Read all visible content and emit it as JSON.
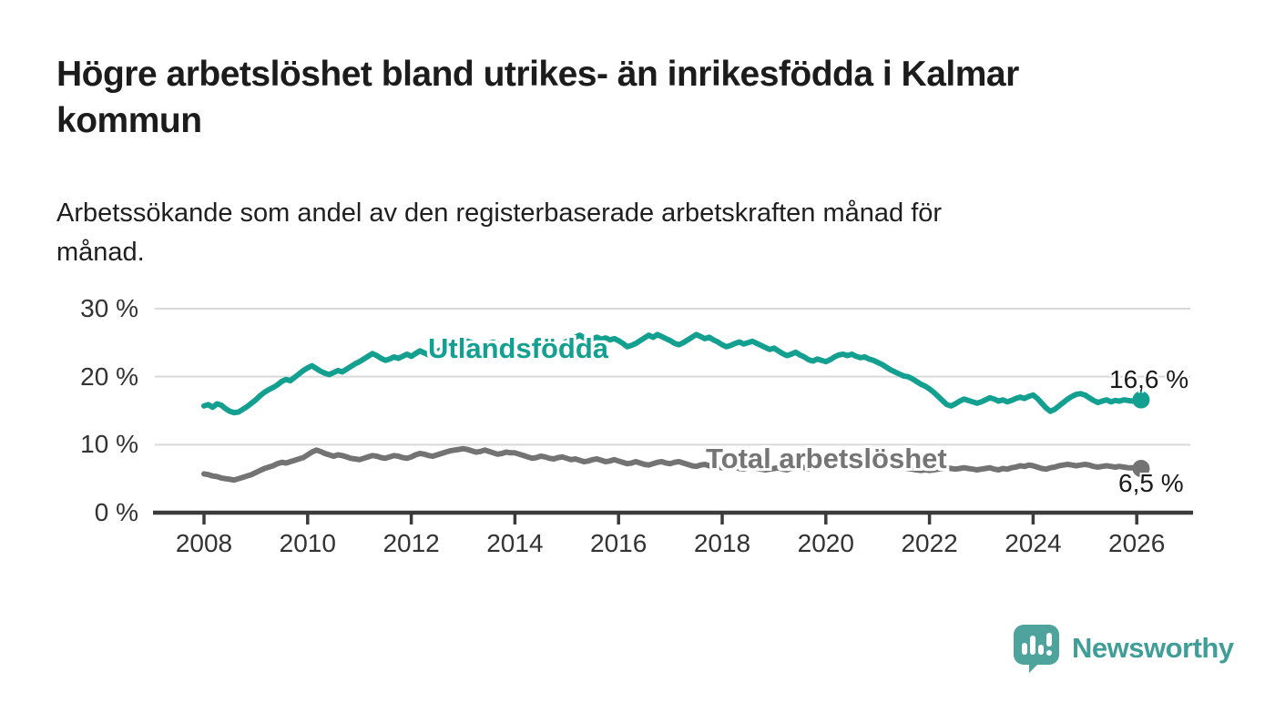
{
  "header": {
    "title_lines": [
      "Högre arbetslöshet bland utrikes- än inrikesfödda i Kalmar",
      "kommun"
    ],
    "subtitle_lines": [
      "Arbetssökande som andel av den registerbaserade arbetskraften månad för",
      "månad."
    ]
  },
  "footer": {
    "brand": "Newsworthy",
    "brand_color": "#3f9e98",
    "logo_icon": "bar-chart-speech-bubble"
  },
  "chart_data": {
    "type": "line",
    "unit": "%",
    "x_start_year": 2008,
    "x_step_months": 1,
    "x_end": "2026-02",
    "xlim": [
      2007.0,
      2027.0
    ],
    "ylim": [
      0,
      31.5
    ],
    "grid": "horizontal",
    "y_axis": {
      "ticks": [
        {
          "value": 0,
          "label": "0 %"
        },
        {
          "value": 10,
          "label": "10 %"
        },
        {
          "value": 20,
          "label": "20 %"
        },
        {
          "value": 30,
          "label": "30 %"
        }
      ]
    },
    "x_axis": {
      "ticks": [
        2008,
        2010,
        2012,
        2014,
        2016,
        2018,
        2020,
        2022,
        2024,
        2026
      ]
    },
    "colors": {
      "axis": "#3b3b3b",
      "gridline": "#d9d9d9",
      "tick_text": "#333333"
    },
    "series": [
      {
        "name": "Utlandsfödda",
        "color": "#14a091",
        "end_label": "16,6 %",
        "end_value": 16.6,
        "values": [
          15.7,
          15.9,
          15.5,
          16.0,
          15.8,
          15.3,
          14.9,
          14.7,
          14.8,
          15.2,
          15.6,
          16.1,
          16.6,
          17.2,
          17.7,
          18.1,
          18.4,
          18.8,
          19.3,
          19.6,
          19.4,
          19.9,
          20.4,
          20.9,
          21.3,
          21.6,
          21.2,
          20.8,
          20.5,
          20.3,
          20.6,
          20.9,
          20.7,
          21.1,
          21.5,
          21.9,
          22.2,
          22.6,
          23.0,
          23.4,
          23.1,
          22.7,
          22.4,
          22.6,
          22.9,
          22.7,
          23.0,
          23.3,
          23.0,
          23.4,
          23.8,
          23.5,
          23.2,
          23.4,
          23.7,
          24.0,
          23.8,
          24.1,
          24.4,
          24.7,
          24.9,
          25.2,
          25.0,
          24.7,
          24.4,
          24.6,
          24.9,
          25.1,
          24.8,
          24.5,
          24.7,
          25.0,
          25.0,
          24.7,
          24.3,
          23.9,
          23.5,
          23.2,
          23.4,
          23.7,
          24.0,
          24.3,
          24.6,
          24.9,
          25.2,
          25.5,
          25.8,
          26.1,
          25.7,
          25.4,
          25.6,
          25.8,
          25.5,
          25.7,
          25.4,
          25.6,
          25.3,
          24.9,
          24.4,
          24.6,
          24.9,
          25.3,
          25.7,
          26.1,
          25.8,
          26.2,
          25.9,
          25.6,
          25.3,
          24.9,
          24.7,
          25.0,
          25.4,
          25.8,
          26.2,
          25.9,
          25.6,
          25.8,
          25.4,
          25.1,
          24.7,
          24.4,
          24.6,
          24.9,
          25.1,
          24.8,
          25.0,
          25.2,
          24.9,
          24.6,
          24.3,
          24.0,
          24.2,
          23.8,
          23.4,
          23.1,
          23.3,
          23.6,
          23.2,
          22.9,
          22.5,
          22.3,
          22.6,
          22.4,
          22.2,
          22.5,
          22.9,
          23.2,
          23.3,
          23.1,
          23.3,
          23.0,
          22.8,
          22.9,
          22.6,
          22.4,
          22.1,
          21.8,
          21.4,
          21.0,
          20.7,
          20.4,
          20.1,
          20.0,
          19.7,
          19.3,
          18.9,
          18.6,
          18.2,
          17.7,
          17.1,
          16.5,
          15.9,
          15.7,
          16.0,
          16.4,
          16.7,
          16.5,
          16.3,
          16.1,
          16.3,
          16.6,
          16.9,
          16.7,
          16.4,
          16.6,
          16.3,
          16.5,
          16.8,
          17.0,
          16.8,
          17.1,
          17.3,
          16.8,
          16.1,
          15.4,
          14.9,
          15.2,
          15.7,
          16.2,
          16.7,
          17.1,
          17.4,
          17.5,
          17.3,
          16.9,
          16.5,
          16.2,
          16.4,
          16.6,
          16.3,
          16.5,
          16.4,
          16.6,
          16.5,
          16.4,
          16.5,
          16.6
        ]
      },
      {
        "name": "Total arbetslöshet",
        "color": "#737373",
        "end_label": "6,5 %",
        "end_value": 6.5,
        "values": [
          5.7,
          5.6,
          5.4,
          5.3,
          5.1,
          5.0,
          4.9,
          4.8,
          5.0,
          5.2,
          5.4,
          5.6,
          5.9,
          6.2,
          6.5,
          6.7,
          6.9,
          7.2,
          7.4,
          7.3,
          7.5,
          7.7,
          7.9,
          8.1,
          8.5,
          8.9,
          9.2,
          9.0,
          8.7,
          8.5,
          8.3,
          8.5,
          8.4,
          8.2,
          8.0,
          7.9,
          7.8,
          8.0,
          8.2,
          8.4,
          8.3,
          8.1,
          8.0,
          8.2,
          8.4,
          8.3,
          8.1,
          8.0,
          8.2,
          8.5,
          8.7,
          8.6,
          8.4,
          8.3,
          8.5,
          8.7,
          8.9,
          9.1,
          9.2,
          9.3,
          9.4,
          9.3,
          9.1,
          8.9,
          9.0,
          9.2,
          9.0,
          8.8,
          8.6,
          8.7,
          8.9,
          8.8,
          8.8,
          8.6,
          8.4,
          8.2,
          8.0,
          8.1,
          8.3,
          8.2,
          8.0,
          7.9,
          8.1,
          8.2,
          8.0,
          7.8,
          7.9,
          7.7,
          7.5,
          7.6,
          7.8,
          7.9,
          7.7,
          7.5,
          7.6,
          7.8,
          7.6,
          7.4,
          7.2,
          7.3,
          7.5,
          7.3,
          7.1,
          7.0,
          7.2,
          7.4,
          7.5,
          7.3,
          7.2,
          7.4,
          7.5,
          7.3,
          7.1,
          6.9,
          6.8,
          7.0,
          7.1,
          6.9,
          6.8,
          6.7,
          6.6,
          6.8,
          6.9,
          6.7,
          6.5,
          6.4,
          6.6,
          6.7,
          6.5,
          6.4,
          6.3,
          6.4,
          6.5,
          6.6,
          6.4,
          6.3,
          6.5,
          6.7,
          6.8,
          6.6,
          6.5,
          6.7,
          6.9,
          7.1,
          7.3,
          7.5,
          7.8,
          8.0,
          8.1,
          8.0,
          7.9,
          7.7,
          7.6,
          7.4,
          7.3,
          7.2,
          7.4,
          7.3,
          7.1,
          7.0,
          6.9,
          6.8,
          6.6,
          6.5,
          6.4,
          6.3,
          6.2,
          6.3,
          6.2,
          6.3,
          6.4,
          6.5,
          6.6,
          6.5,
          6.4,
          6.5,
          6.6,
          6.5,
          6.4,
          6.3,
          6.4,
          6.5,
          6.6,
          6.4,
          6.3,
          6.5,
          6.4,
          6.6,
          6.7,
          6.9,
          6.8,
          7.0,
          6.9,
          6.7,
          6.5,
          6.4,
          6.6,
          6.7,
          6.9,
          7.0,
          7.1,
          7.0,
          6.9,
          7.0,
          7.1,
          7.0,
          6.8,
          6.7,
          6.8,
          6.9,
          6.8,
          6.7,
          6.8,
          6.7,
          6.6,
          6.6,
          6.6,
          6.5
        ]
      }
    ]
  }
}
